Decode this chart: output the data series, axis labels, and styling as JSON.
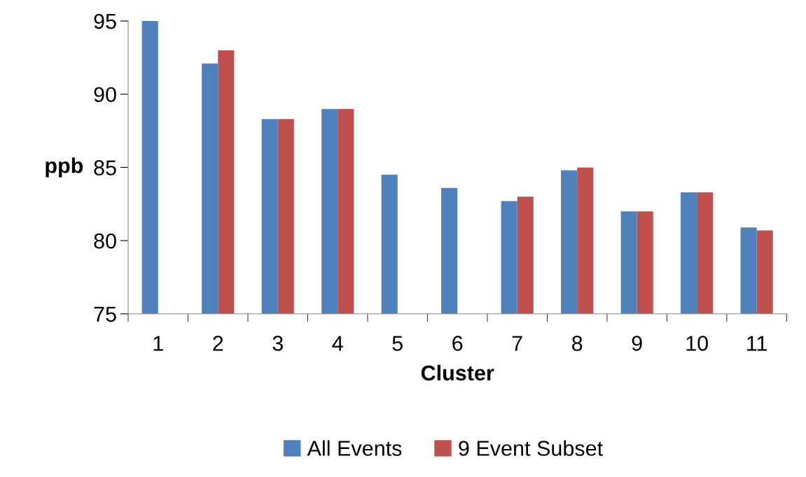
{
  "chart_data": {
    "type": "bar",
    "xlabel": "Cluster",
    "ylabel": "ppb",
    "categories": [
      "1",
      "2",
      "3",
      "4",
      "5",
      "6",
      "7",
      "8",
      "9",
      "10",
      "11"
    ],
    "series": [
      {
        "name": "All Events",
        "color": "#4f81bd",
        "values": [
          95.0,
          92.1,
          88.3,
          89.0,
          84.5,
          83.6,
          82.7,
          84.8,
          82.0,
          83.3,
          80.9
        ]
      },
      {
        "name": "9 Event Subset",
        "color": "#c0504d",
        "values": [
          null,
          93.0,
          88.3,
          89.0,
          null,
          null,
          83.0,
          85.0,
          82.0,
          83.3,
          80.7
        ]
      }
    ],
    "ylim": [
      75,
      95
    ],
    "yticks": [
      75,
      80,
      85,
      90,
      95
    ],
    "grid": false,
    "legend": "bottom"
  }
}
